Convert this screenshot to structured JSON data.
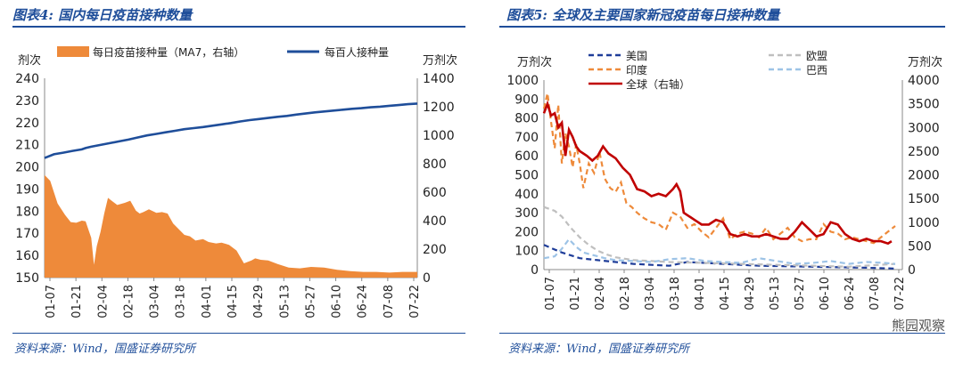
{
  "fig4": {
    "title": "图表4:  国内每日疫苗接种数量",
    "source": "资料来源：Wind，国盛证券研究所"
  },
  "fig5": {
    "title": "图表5:  全球及主要国家新冠疫苗每日接种数量",
    "source": "资料来源：Wind，国盛证券研究所"
  },
  "watermark": "熊园观察",
  "colors": {
    "title": "#1f4e9a",
    "area": "#ee8a3a",
    "navy": "#1f4e9a",
    "red": "#c00000",
    "grey": "#bfbfbf",
    "lightblue": "#9dc3e6",
    "dashblue": "#1f3d99"
  },
  "chart_data": [
    {
      "type": "area",
      "left_unit": "剂次",
      "right_unit": "万剂次",
      "left_ylim": [
        150,
        240
      ],
      "right_ylim": [
        0,
        1400
      ],
      "left_ticks": [
        150,
        160,
        170,
        180,
        190,
        200,
        210,
        220,
        230,
        240
      ],
      "right_ticks": [
        0,
        200,
        400,
        600,
        800,
        1000,
        1200,
        1400
      ],
      "x_ticks": [
        "01-07",
        "01-21",
        "02-04",
        "02-18",
        "03-04",
        "03-18",
        "04-01",
        "04-15",
        "04-29",
        "05-13",
        "05-27",
        "06-10",
        "06-24",
        "07-08",
        "07-22"
      ],
      "legend_position": "top",
      "series": [
        {
          "name": "每日疫苗接种量（MA7，右轴）",
          "axis": "right",
          "style": "area",
          "color": "#ee8a3a",
          "x": [
            0,
            3,
            7,
            11,
            14,
            17,
            20,
            22,
            25,
            26.5,
            28,
            30,
            32,
            34,
            36,
            39,
            43,
            46,
            49,
            51,
            53,
            56,
            60,
            63,
            66,
            69,
            72,
            75,
            78,
            81,
            85,
            88,
            92,
            95,
            99,
            103,
            107,
            111,
            113,
            116,
            120,
            125,
            131,
            137,
            143,
            150,
            157,
            164,
            171,
            178,
            185,
            192,
            199,
            200
          ],
          "values": [
            720,
            680,
            520,
            440,
            390,
            385,
            400,
            395,
            280,
            90,
            220,
            320,
            450,
            560,
            540,
            510,
            525,
            540,
            470,
            450,
            460,
            480,
            455,
            460,
            450,
            380,
            340,
            300,
            290,
            260,
            270,
            250,
            240,
            245,
            230,
            190,
            100,
            120,
            135,
            125,
            120,
            95,
            70,
            65,
            75,
            70,
            55,
            45,
            40,
            40,
            35,
            40,
            40,
            40
          ]
        },
        {
          "name": "每百人接种量",
          "axis": "left",
          "style": "line",
          "color": "#1f4e9a",
          "x": [
            0,
            5,
            10,
            15,
            20,
            22,
            25,
            30,
            35,
            40,
            45,
            50,
            55,
            60,
            65,
            70,
            75,
            80,
            85,
            90,
            95,
            100,
            105,
            110,
            115,
            120,
            125,
            130,
            135,
            140,
            145,
            150,
            155,
            160,
            165,
            170,
            175,
            180,
            185,
            190,
            195,
            200
          ],
          "values": [
            204,
            205.7,
            206.4,
            207.2,
            207.9,
            208.5,
            209.1,
            209.9,
            210.7,
            211.5,
            212.3,
            213.3,
            214.2,
            214.9,
            215.6,
            216.3,
            217.0,
            217.5,
            218.0,
            218.6,
            219.2,
            219.8,
            220.5,
            221.1,
            221.6,
            222.1,
            222.6,
            223.0,
            223.6,
            224.1,
            224.6,
            225.0,
            225.4,
            225.8,
            226.2,
            226.5,
            226.9,
            227.2,
            227.6,
            227.9,
            228.3,
            228.6
          ]
        }
      ]
    },
    {
      "type": "line",
      "left_unit": "万剂次",
      "right_unit": "万剂次",
      "left_ylim": [
        0,
        1000
      ],
      "right_ylim": [
        0,
        4000
      ],
      "left_ticks": [
        0,
        100,
        200,
        300,
        400,
        500,
        600,
        700,
        800,
        900,
        1000
      ],
      "right_ticks": [
        0,
        500,
        1000,
        1500,
        2000,
        2500,
        3000,
        3500,
        4000
      ],
      "x_ticks": [
        "01-07",
        "01-21",
        "02-04",
        "02-18",
        "03-04",
        "03-18",
        "04-01",
        "04-15",
        "04-29",
        "05-13",
        "05-27",
        "06-10",
        "06-24",
        "07-08",
        "07-22"
      ],
      "legend_position": "top",
      "series": [
        {
          "name": "美国",
          "axis": "left",
          "style": "dash",
          "color": "#1f3d99",
          "x": [
            0,
            5,
            10,
            20,
            30,
            40,
            50,
            60,
            70,
            80,
            100,
            120,
            150,
            180,
            196
          ],
          "values": [
            130,
            110,
            90,
            60,
            50,
            40,
            30,
            25,
            20,
            40,
            30,
            20,
            15,
            10,
            5
          ]
        },
        {
          "name": "欧盟",
          "axis": "left",
          "style": "dash",
          "color": "#bfbfbf",
          "x": [
            0,
            6,
            10,
            15,
            20,
            25,
            30,
            35,
            40,
            50,
            60,
            70,
            90,
            110,
            130,
            150,
            170,
            196
          ],
          "values": [
            330,
            310,
            280,
            220,
            170,
            130,
            100,
            80,
            65,
            50,
            45,
            40,
            35,
            30,
            25,
            20,
            15,
            30
          ]
        },
        {
          "name": "印度",
          "axis": "left",
          "style": "dash",
          "color": "#ee8a3a",
          "x": [
            0,
            2,
            4,
            6,
            8,
            10,
            12,
            14,
            16,
            18,
            20,
            22,
            25,
            28,
            31,
            34,
            37,
            40,
            43,
            46,
            49,
            52,
            56,
            60,
            64,
            68,
            72,
            76,
            80,
            84,
            88,
            92,
            96,
            100,
            104,
            108,
            112,
            116,
            120,
            124,
            128,
            132,
            136,
            140,
            144,
            148,
            152,
            156,
            160,
            164,
            168,
            172,
            176,
            180,
            184,
            188,
            192,
            196
          ],
          "values": [
            850,
            930,
            780,
            640,
            870,
            560,
            720,
            650,
            540,
            660,
            560,
            430,
            560,
            510,
            620,
            480,
            430,
            410,
            460,
            350,
            330,
            300,
            270,
            250,
            240,
            210,
            300,
            280,
            220,
            240,
            200,
            170,
            220,
            270,
            160,
            190,
            200,
            190,
            170,
            220,
            160,
            190,
            220,
            170,
            150,
            160,
            160,
            240,
            200,
            190,
            160,
            170,
            160,
            150,
            140,
            170,
            200,
            230
          ]
        },
        {
          "name": "巴西",
          "axis": "left",
          "style": "dash",
          "color": "#9dc3e6",
          "x": [
            0,
            6,
            10,
            14,
            18,
            22,
            26,
            30,
            34,
            40,
            50,
            60,
            70,
            80,
            90,
            100,
            110,
            120,
            130,
            140,
            150,
            160,
            170,
            180,
            190,
            196
          ],
          "values": [
            60,
            70,
            110,
            160,
            120,
            90,
            80,
            70,
            60,
            50,
            45,
            40,
            55,
            60,
            45,
            40,
            35,
            60,
            45,
            30,
            35,
            45,
            30,
            40,
            35,
            30
          ]
        },
        {
          "name": "全球（右轴）",
          "axis": "right",
          "style": "line",
          "color": "#c00000",
          "x": [
            0,
            2,
            4,
            6,
            8,
            10,
            12,
            14,
            16,
            18,
            20,
            22,
            24,
            27,
            30,
            33,
            36,
            40,
            44,
            48,
            52,
            56,
            60,
            64,
            68,
            72,
            74,
            76,
            78,
            80,
            82,
            84,
            88,
            92,
            96,
            100,
            104,
            108,
            112,
            116,
            120,
            124,
            128,
            132,
            136,
            140,
            144,
            148,
            152,
            156,
            160,
            164,
            168,
            172,
            176,
            180,
            184,
            188,
            192,
            194
          ],
          "values": [
            3300,
            3500,
            3250,
            3300,
            3000,
            3100,
            2400,
            2950,
            2800,
            2600,
            2500,
            2450,
            2400,
            2300,
            2400,
            2600,
            2450,
            2350,
            2150,
            2000,
            1700,
            1650,
            1550,
            1600,
            1550,
            1700,
            1800,
            1650,
            1200,
            1150,
            1100,
            1050,
            950,
            950,
            1050,
            1000,
            750,
            700,
            750,
            700,
            700,
            750,
            700,
            650,
            650,
            800,
            1000,
            850,
            700,
            750,
            1000,
            950,
            750,
            650,
            600,
            650,
            600,
            600,
            550,
            600
          ]
        }
      ]
    }
  ]
}
